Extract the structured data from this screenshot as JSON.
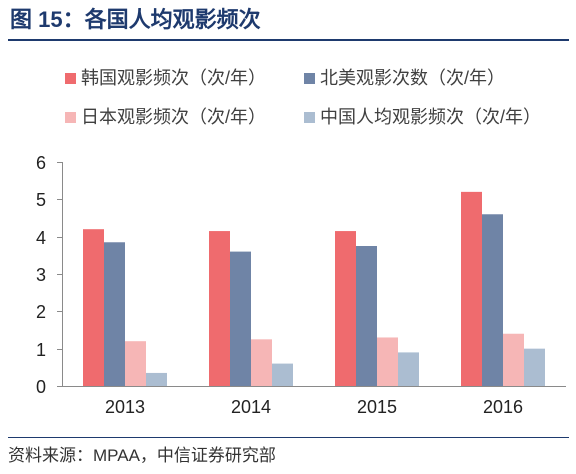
{
  "chart_data": {
    "type": "bar",
    "title": "图 15：各国人均观影频次",
    "categories": [
      "2013",
      "2014",
      "2015",
      "2016"
    ],
    "series": [
      {
        "name": "韩国观影频次（次/年）",
        "values": [
          4.2,
          4.15,
          4.15,
          5.2
        ],
        "color": "#EF6B6E"
      },
      {
        "name": "北美观影次数（次/年）",
        "values": [
          3.85,
          3.6,
          3.75,
          4.6
        ],
        "color": "#6F84A6"
      },
      {
        "name": "日本观影频次（次/年）",
        "values": [
          1.2,
          1.25,
          1.3,
          1.4
        ],
        "color": "#F6B6B6"
      },
      {
        "name": "中国人均观影频次（次/年）",
        "values": [
          0.35,
          0.6,
          0.9,
          1.0
        ],
        "color": "#ABBDD1"
      }
    ],
    "yticks": [
      0,
      1,
      2,
      3,
      4,
      5,
      6
    ],
    "ylim": [
      0,
      6
    ],
    "grid": false,
    "legend": "top"
  },
  "source": "资料来源：MPAA，中信证券研究部"
}
